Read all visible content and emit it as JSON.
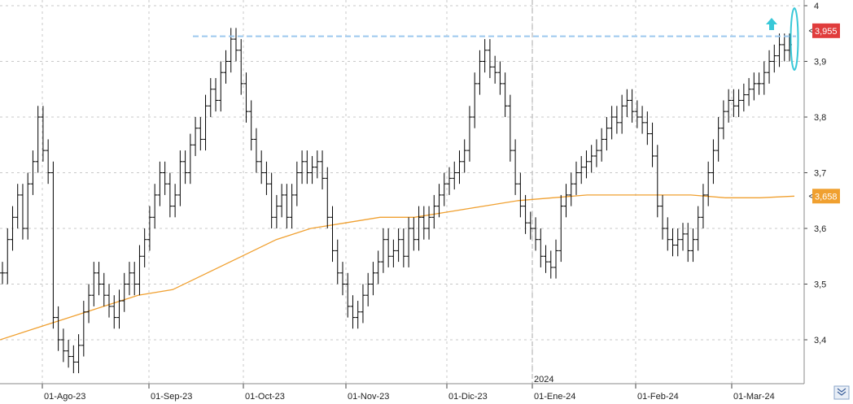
{
  "chart_data": {
    "type": "ohlc",
    "title": "",
    "xlabel": "",
    "ylabel": "",
    "ylim": [
      3.3,
      4.0
    ],
    "y_ticks": [
      "4",
      "3,9",
      "3,8",
      "3,7",
      "3,6",
      "3,5",
      "3,4"
    ],
    "y_tick_values": [
      4.0,
      3.9,
      3.8,
      3.7,
      3.6,
      3.5,
      3.4
    ],
    "x_tick_labels": [
      "01-Ago-23",
      "01-Sep-23",
      "01-Oct-23",
      "01-Nov-23",
      "01-Dic-23",
      "01-Ene-24",
      "01-Feb-24",
      "01-Mar-24"
    ],
    "year_separator_label": "2024",
    "grid": true,
    "last_price": {
      "value": 3.955,
      "label": "3,955",
      "color": "#e03c3c"
    },
    "moving_average": {
      "value": 3.658,
      "label": "3,658",
      "color": "#f0a030"
    },
    "resistance_level": 3.945,
    "bar_color": "#000000",
    "resistance_color": "#9cc8ee",
    "highlight_color": "#38c8d8",
    "series": [
      {
        "values": [
          3.52,
          3.58,
          3.62,
          3.66,
          3.6,
          3.68,
          3.72,
          3.8,
          3.74,
          3.7,
          3.44,
          3.4,
          3.38,
          3.37,
          3.36,
          3.39,
          3.45,
          3.48,
          3.52,
          3.5,
          3.48,
          3.46,
          3.44,
          3.47,
          3.5,
          3.52,
          3.5,
          3.55,
          3.58,
          3.62,
          3.66,
          3.7,
          3.68,
          3.64,
          3.66,
          3.72,
          3.7,
          3.75,
          3.78,
          3.76,
          3.82,
          3.85,
          3.83,
          3.88,
          3.9,
          3.94,
          3.92,
          3.86,
          3.81,
          3.76,
          3.72,
          3.7,
          3.68,
          3.62,
          3.64,
          3.66,
          3.62,
          3.66,
          3.7,
          3.72,
          3.7,
          3.71,
          3.72,
          3.69,
          3.62,
          3.56,
          3.52,
          3.5,
          3.46,
          3.44,
          3.45,
          3.48,
          3.5,
          3.52,
          3.54,
          3.58,
          3.55,
          3.56,
          3.58,
          3.55,
          3.6,
          3.58,
          3.62,
          3.6,
          3.62,
          3.64,
          3.66,
          3.68,
          3.69,
          3.7,
          3.72,
          3.74,
          3.8,
          3.86,
          3.9,
          3.92,
          3.89,
          3.88,
          3.86,
          3.82,
          3.74,
          3.68,
          3.64,
          3.61,
          3.6,
          3.58,
          3.55,
          3.54,
          3.53,
          3.56,
          3.64,
          3.66,
          3.68,
          3.7,
          3.71,
          3.72,
          3.73,
          3.74,
          3.76,
          3.78,
          3.8,
          3.79,
          3.82,
          3.83,
          3.81,
          3.8,
          3.79,
          3.77,
          3.73,
          3.64,
          3.6,
          3.58,
          3.57,
          3.58,
          3.59,
          3.56,
          3.58,
          3.62,
          3.66,
          3.7,
          3.74,
          3.78,
          3.81,
          3.83,
          3.82,
          3.83,
          3.84,
          3.85,
          3.86,
          3.86,
          3.88,
          3.9,
          3.91,
          3.93,
          3.92,
          3.93
        ]
      }
    ],
    "ma_series": [
      3.4,
      3.42,
      3.44,
      3.46,
      3.48,
      3.49,
      3.52,
      3.55,
      3.58,
      3.6,
      3.61,
      3.62,
      3.62,
      3.63,
      3.64,
      3.65,
      3.655,
      3.66,
      3.66,
      3.66,
      3.66,
      3.655,
      3.655,
      3.658
    ]
  }
}
